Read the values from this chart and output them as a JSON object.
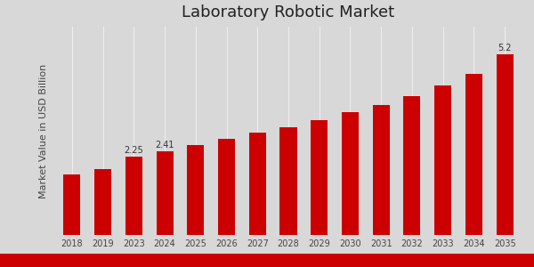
{
  "title": "Laboratory Robotic Market",
  "ylabel": "Market Value in USD Billion",
  "bar_color": "#cc0000",
  "background_color": "#d8d8d8",
  "plot_bg_color": "#d8d8d8",
  "categories": [
    "2018",
    "2019",
    "2023",
    "2024",
    "2025",
    "2026",
    "2027",
    "2028",
    "2029",
    "2030",
    "2031",
    "2032",
    "2033",
    "2034",
    "2035"
  ],
  "values": [
    1.75,
    1.9,
    2.25,
    2.41,
    2.58,
    2.78,
    2.95,
    3.1,
    3.3,
    3.55,
    3.75,
    4.0,
    4.3,
    4.65,
    5.2
  ],
  "annotations": {
    "2023": "2.25",
    "2024": "2.41",
    "2035": "5.2"
  },
  "title_fontsize": 13,
  "ylabel_fontsize": 8,
  "tick_fontsize": 7,
  "annotation_fontsize": 7,
  "bottom_bar_color": "#cc0000",
  "ylim": [
    0,
    6.0
  ]
}
